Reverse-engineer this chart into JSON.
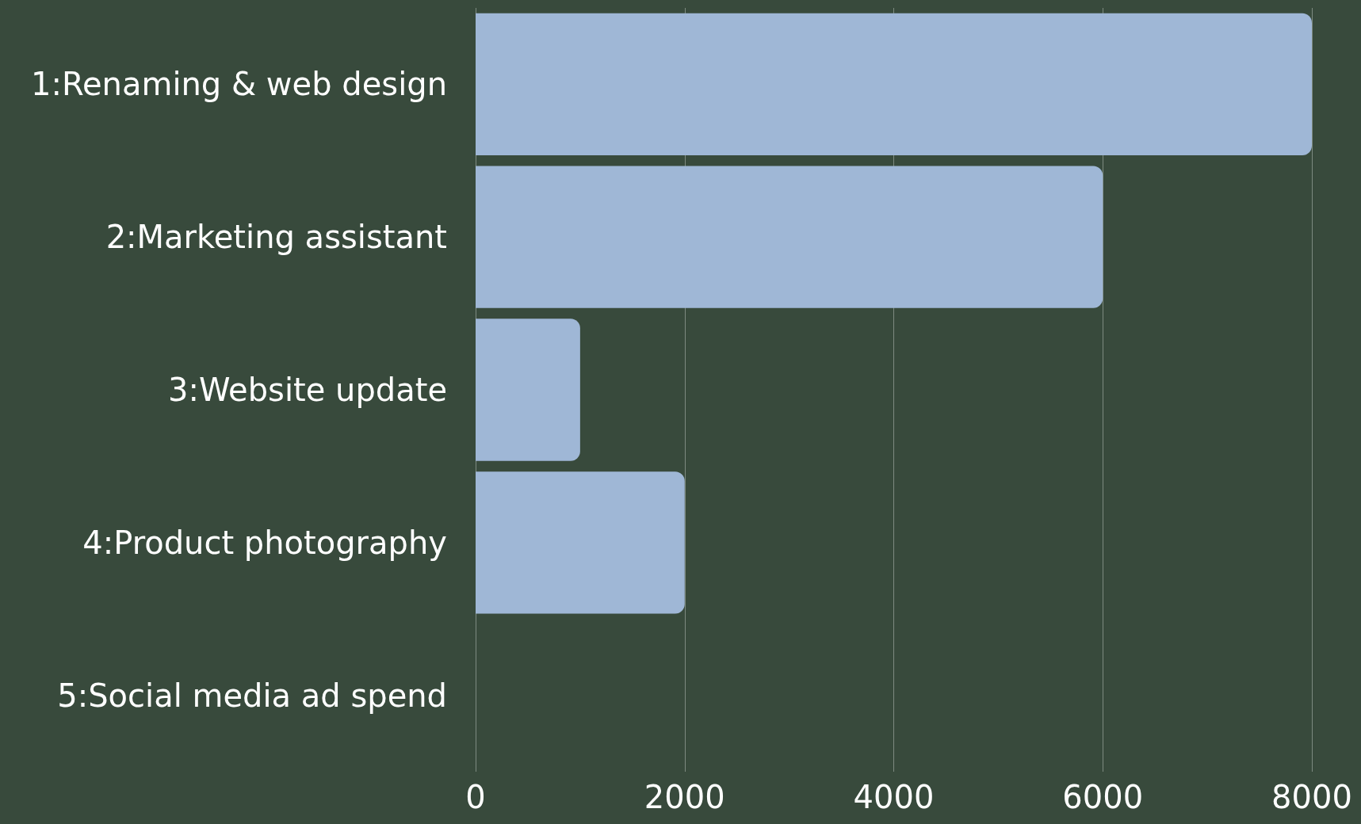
{
  "chart_data": {
    "type": "bar",
    "orientation": "horizontal",
    "categories": [
      "1:Renaming & web design",
      "2:Marketing assistant",
      "3:Website update",
      "4:Product photography",
      "5:Social media ad spend"
    ],
    "values": [
      8000,
      6000,
      1000,
      2000,
      0
    ],
    "color": "#9fb7d6",
    "xlim": [
      0,
      8000
    ],
    "xticks": [
      0,
      2000,
      4000,
      6000,
      8000
    ],
    "grid": "x"
  }
}
